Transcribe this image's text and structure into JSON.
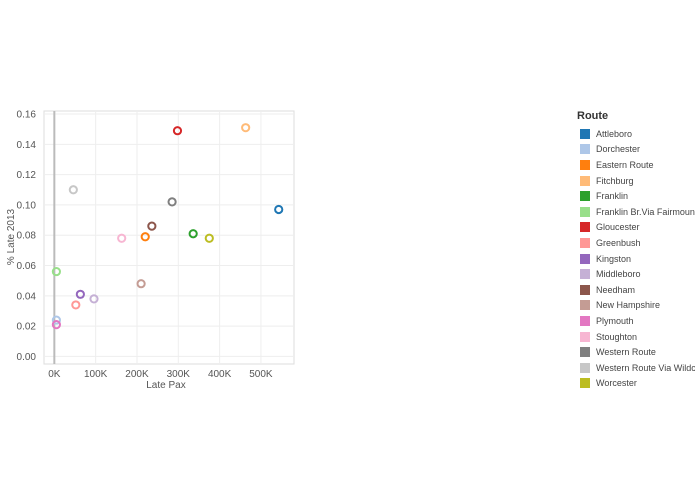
{
  "chart_data": {
    "type": "scatter",
    "title": "",
    "xlabel": "Late Pax",
    "ylabel": "% Late 2013",
    "xlim": [
      -25000,
      580000
    ],
    "ylim": [
      -0.005,
      0.162
    ],
    "x_ticks": [
      0,
      100000,
      200000,
      300000,
      400000,
      500000
    ],
    "x_tick_labels": [
      "0K",
      "100K",
      "200K",
      "300K",
      "400K",
      "500K"
    ],
    "y_ticks": [
      0.0,
      0.02,
      0.04,
      0.06,
      0.08,
      0.1,
      0.12,
      0.14,
      0.16
    ],
    "y_tick_labels": [
      "0.00",
      "0.02",
      "0.04",
      "0.06",
      "0.08",
      "0.10",
      "0.12",
      "0.14",
      "0.16"
    ],
    "grid": true,
    "legend_title": "Route",
    "legend_placement": "right",
    "series": [
      {
        "name": "Attleboro",
        "color": "#1f77b4",
        "x": 543000,
        "y": 0.097
      },
      {
        "name": "Dorchester",
        "color": "#aec7e8",
        "x": 5000,
        "y": 0.024
      },
      {
        "name": "Eastern Route",
        "color": "#ff7f0e",
        "x": 220000,
        "y": 0.079
      },
      {
        "name": "Fitchburg",
        "color": "#ffbb78",
        "x": 463000,
        "y": 0.151
      },
      {
        "name": "Franklin",
        "color": "#2ca02c",
        "x": 336000,
        "y": 0.081
      },
      {
        "name": "Franklin Br.Via Fairmount",
        "color": "#98df8a",
        "x": 5000,
        "y": 0.056
      },
      {
        "name": "Gloucester",
        "color": "#d62728",
        "x": 298000,
        "y": 0.149
      },
      {
        "name": "Greenbush",
        "color": "#ff9896",
        "x": 52000,
        "y": 0.034
      },
      {
        "name": "Kingston",
        "color": "#9467bd",
        "x": 63000,
        "y": 0.041
      },
      {
        "name": "Middleboro",
        "color": "#c5b0d5",
        "x": 96000,
        "y": 0.038
      },
      {
        "name": "Needham",
        "color": "#8c564b",
        "x": 236000,
        "y": 0.086
      },
      {
        "name": "New Hampshire",
        "color": "#c49c94",
        "x": 210000,
        "y": 0.048
      },
      {
        "name": "Plymouth",
        "color": "#e377c2",
        "x": 5000,
        "y": 0.021
      },
      {
        "name": "Stoughton",
        "color": "#f7b6d2",
        "x": 163000,
        "y": 0.078
      },
      {
        "name": "Western Route",
        "color": "#7f7f7f",
        "x": 285000,
        "y": 0.102
      },
      {
        "name": "Western Route Via Wildcat",
        "color": "#c7c7c7",
        "x": 46000,
        "y": 0.11
      },
      {
        "name": "Worcester",
        "color": "#bcbd22",
        "x": 375000,
        "y": 0.078
      }
    ]
  }
}
